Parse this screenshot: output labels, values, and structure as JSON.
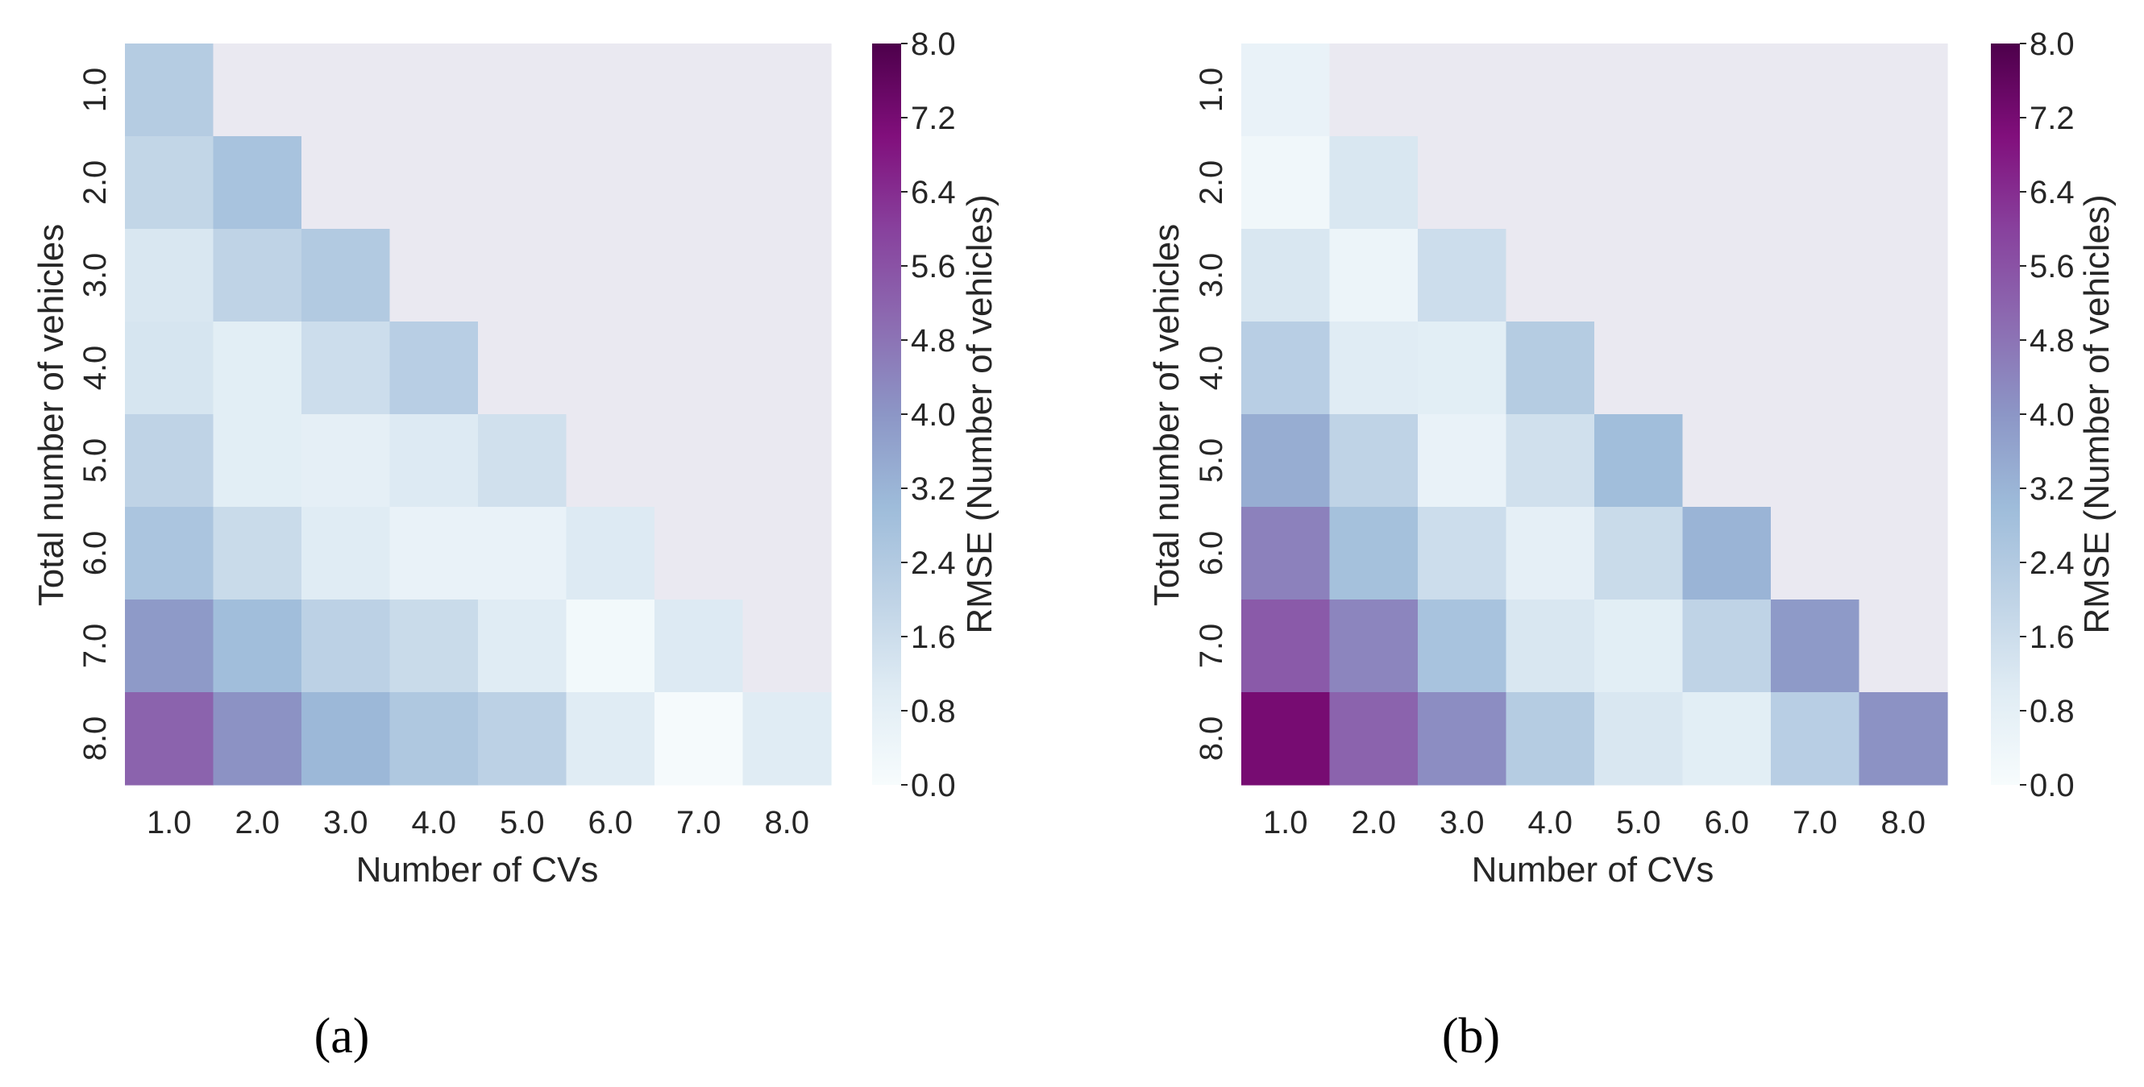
{
  "chart_data": [
    {
      "type": "heatmap",
      "panel_label": "(a)",
      "xlabel": "Number of CVs",
      "ylabel": "Total number of vehicles",
      "x_ticks": [
        "1.0",
        "2.0",
        "3.0",
        "4.0",
        "5.0",
        "6.0",
        "7.0",
        "8.0"
      ],
      "y_ticks": [
        "1.0",
        "2.0",
        "3.0",
        "4.0",
        "5.0",
        "6.0",
        "7.0",
        "8.0"
      ],
      "values": [
        [
          2.3
        ],
        [
          1.9,
          2.7
        ],
        [
          1.2,
          2.0,
          2.4
        ],
        [
          1.3,
          0.9,
          1.6,
          2.2
        ],
        [
          2.0,
          0.9,
          0.8,
          1.1,
          1.5
        ],
        [
          2.6,
          1.7,
          1.0,
          0.6,
          0.6,
          1.1
        ],
        [
          3.9,
          2.9,
          2.1,
          1.7,
          1.0,
          0.2,
          1.1
        ],
        [
          5.2,
          4.1,
          3.1,
          2.5,
          2.1,
          1.0,
          0.1,
          1.0
        ]
      ],
      "masked_region": "upper triangle (CVs > total)",
      "colorbar": {
        "label": "RMSE (Number of vehicles)",
        "range": [
          0.0,
          8.0
        ],
        "ticks": [
          "0.0",
          "0.8",
          "1.6",
          "2.4",
          "3.2",
          "4.0",
          "4.8",
          "5.6",
          "6.4",
          "7.2",
          "8.0"
        ]
      }
    },
    {
      "type": "heatmap",
      "panel_label": "(b)",
      "xlabel": "Number of CVs",
      "ylabel": "Total number of vehicles",
      "x_ticks": [
        "1.0",
        "2.0",
        "3.0",
        "4.0",
        "5.0",
        "6.0",
        "7.0",
        "8.0"
      ],
      "y_ticks": [
        "1.0",
        "2.0",
        "3.0",
        "4.0",
        "5.0",
        "6.0",
        "7.0",
        "8.0"
      ],
      "values": [
        [
          0.6
        ],
        [
          0.3,
          1.2
        ],
        [
          1.2,
          0.5,
          1.6
        ],
        [
          2.2,
          1.0,
          0.9,
          2.3
        ],
        [
          3.4,
          2.0,
          0.6,
          1.5,
          2.9
        ],
        [
          4.5,
          2.8,
          1.6,
          0.8,
          1.7,
          3.2
        ],
        [
          5.4,
          4.4,
          2.7,
          1.2,
          0.9,
          2.0,
          3.9
        ],
        [
          7.2,
          5.2,
          4.2,
          2.3,
          1.2,
          0.9,
          2.2,
          4.1
        ]
      ],
      "masked_region": "upper triangle (CVs > total)",
      "colorbar": {
        "label": "RMSE (Number of vehicles)",
        "range": [
          0.0,
          8.0
        ],
        "ticks": [
          "0.0",
          "0.8",
          "1.6",
          "2.4",
          "3.2",
          "4.0",
          "4.8",
          "5.6",
          "6.4",
          "7.2",
          "8.0"
        ]
      }
    }
  ],
  "colors": {
    "masked": "#eae9f1",
    "colormap": [
      "#f7fcfd",
      "#e0ecf4",
      "#bfd3e6",
      "#9ebcda",
      "#8c96c6",
      "#8c6bb1",
      "#88419d",
      "#810f7c",
      "#4d004b"
    ]
  }
}
